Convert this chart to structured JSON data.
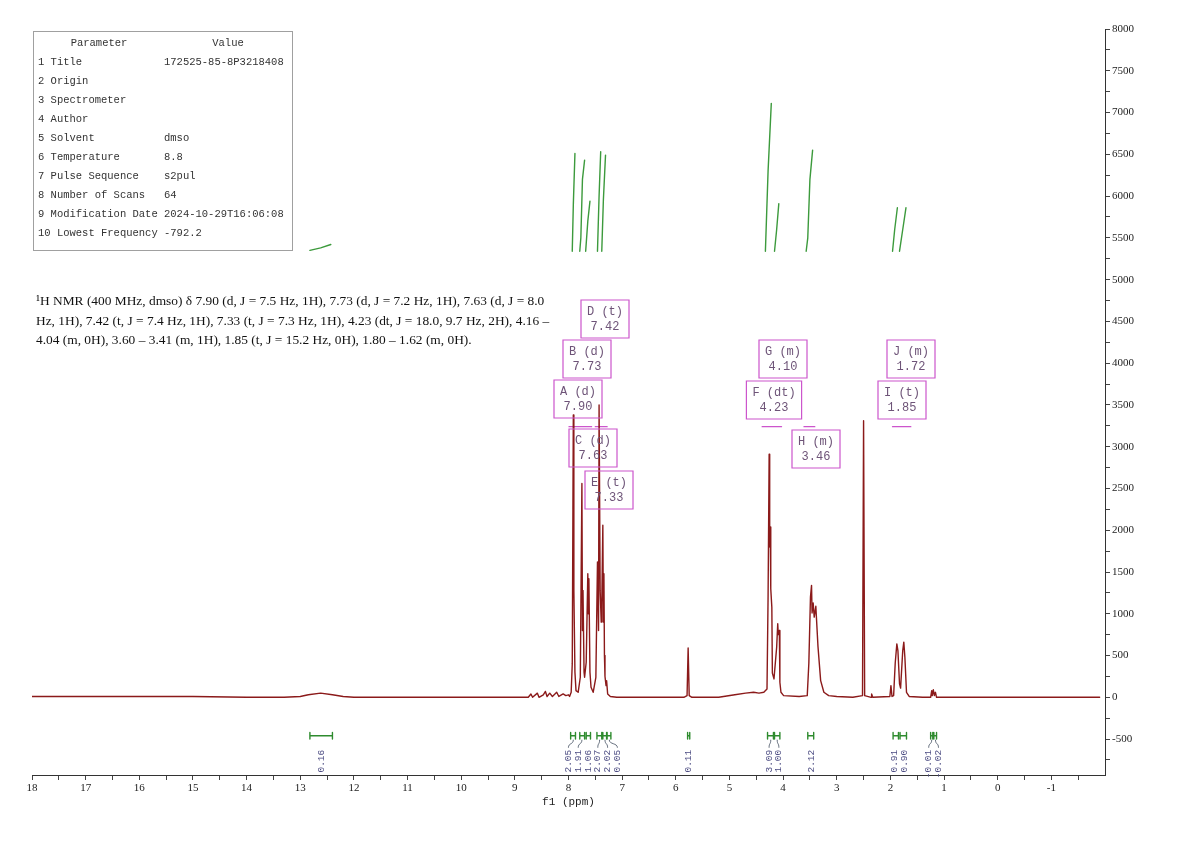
{
  "chart_data": [
    {
      "type": "line",
      "xlabel": "f1 (ppm)",
      "xlim": [
        18,
        -2
      ],
      "xticks": [
        18,
        {
          "value": 17.5,
          "label": null
        },
        17,
        {
          "value": 16.5,
          "label": null
        },
        16,
        {
          "value": 15.5,
          "label": null
        },
        15,
        {
          "value": 14.5,
          "label": null
        },
        14,
        {
          "value": 13.5,
          "label": null
        },
        13,
        {
          "value": 12.5,
          "label": null
        },
        12,
        {
          "value": 11.5,
          "label": null
        },
        11,
        {
          "value": 10.5,
          "label": null
        },
        10,
        {
          "value": 9.5,
          "label": null
        },
        9,
        {
          "value": 8.5,
          "label": null
        },
        8,
        {
          "value": 7.5,
          "label": null
        },
        7,
        {
          "value": 6.5,
          "label": null
        },
        6,
        {
          "value": 5.5,
          "label": null
        },
        5,
        {
          "value": 4.5,
          "label": null
        },
        4,
        {
          "value": 3.5,
          "label": null
        },
        3,
        {
          "value": 2.5,
          "label": null
        },
        2,
        {
          "value": 1.5,
          "label": null
        },
        1,
        {
          "value": 0.5,
          "label": null
        },
        0,
        {
          "value": -0.5,
          "label": null
        },
        -1,
        {
          "value": -1.5,
          "label": null
        }
      ],
      "ylim": [
        -930,
        8000
      ],
      "yticks": [
        {
          "value": -750,
          "label": null
        },
        -500,
        {
          "value": -250,
          "label": null
        },
        0,
        {
          "value": 250,
          "label": null
        },
        500,
        {
          "value": 750,
          "label": null
        },
        1000,
        {
          "value": 1250,
          "label": null
        },
        1500,
        {
          "value": 1750,
          "label": null
        },
        2000,
        {
          "value": 2250,
          "label": null
        },
        2500,
        {
          "value": 2750,
          "label": null
        },
        3000,
        {
          "value": 3250,
          "label": null
        },
        3500,
        {
          "value": 3750,
          "label": null
        },
        4000,
        {
          "value": 4250,
          "label": null
        },
        4500,
        {
          "value": 4750,
          "label": null
        },
        5000,
        {
          "value": 5250,
          "label": null
        },
        5500,
        {
          "value": 5750,
          "label": null
        },
        6000,
        {
          "value": 6250,
          "label": null
        },
        6500,
        {
          "value": 6750,
          "label": null
        },
        7000,
        {
          "value": 7250,
          "label": null
        },
        7500,
        {
          "value": 7750,
          "label": null
        },
        8000
      ],
      "series": [
        {
          "color": "#8b1a1a",
          "x": [
            18,
            17,
            16,
            15,
            14,
            13.3,
            13,
            12.85,
            12.62,
            12.4,
            12.2,
            12,
            11,
            10,
            9,
            8.75,
            8.7,
            8.67,
            8.58,
            8.55,
            8.47,
            8.43,
            8.4,
            8.35,
            8.3,
            8.22,
            8.18,
            8.1,
            8.05,
            8,
            7.98,
            7.95,
            7.93,
            7.91,
            7.9,
            7.88,
            7.86,
            7.82,
            7.78,
            7.75,
            7.74,
            7.73,
            7.71,
            7.7,
            7.67,
            7.64,
            7.63,
            7.62,
            7.6,
            7.58,
            7.54,
            7.49,
            7.46,
            7.44,
            7.43,
            7.41,
            7.39,
            7.38,
            7.36,
            7.35,
            7.34,
            7.33,
            7.32,
            7.3,
            7.29,
            7.27,
            7.22,
            7.1,
            6.5,
            6,
            5.85,
            5.79,
            5.77,
            5.75,
            5.7,
            5.2,
            4.9,
            4.7,
            4.55,
            4.45,
            4.36,
            4.3,
            4.28,
            4.26,
            4.25,
            4.24,
            4.23,
            4.21,
            4.2,
            4.17,
            4.12,
            4.1,
            4.09,
            4.07,
            4.06,
            4.04,
            3.99,
            3.7,
            3.55,
            3.52,
            3.49,
            3.47,
            3.46,
            3.44,
            3.42,
            3.39,
            3.35,
            3.3,
            3.24,
            3.15,
            3,
            2.7,
            2.52,
            2.5,
            2.48,
            2.36,
            2.35,
            2.33,
            2.01,
            1.99,
            1.97,
            1.94,
            1.91,
            1.88,
            1.86,
            1.83,
            1.81,
            1.77,
            1.75,
            1.73,
            1.7,
            1.65,
            1.4,
            1.25,
            1.23,
            1.22,
            1.2,
            1.18,
            1.16,
            1.14,
            1,
            0,
            -1,
            -1.9
          ],
          "values": [
            10,
            10,
            10,
            10,
            0,
            0,
            10,
            30,
            50,
            30,
            10,
            0,
            0,
            0,
            0,
            0,
            40,
            0,
            50,
            0,
            30,
            70,
            10,
            50,
            10,
            60,
            10,
            40,
            20,
            30,
            10,
            60,
            400,
            3380,
            1280,
            300,
            80,
            60,
            240,
            2560,
            800,
            1280,
            300,
            240,
            420,
            1480,
            1000,
            1420,
            300,
            120,
            60,
            240,
            1620,
            800,
            3500,
            1280,
            900,
            1100,
            2060,
            900,
            1480,
            500,
            250,
            140,
            200,
            40,
            10,
            0,
            0,
            0,
            0,
            20,
            590,
            20,
            0,
            0,
            30,
            50,
            60,
            50,
            60,
            100,
            1200,
            2910,
            1800,
            2040,
            1300,
            1080,
            290,
            220,
            600,
            880,
            750,
            800,
            180,
            60,
            20,
            10,
            20,
            410,
            1200,
            1340,
            1010,
            1130,
            960,
            1090,
            610,
            200,
            60,
            20,
            10,
            0,
            20,
            3310,
            20,
            0,
            40,
            0,
            10,
            140,
            10,
            20,
            410,
            640,
            560,
            160,
            110,
            560,
            660,
            480,
            60,
            10,
            0,
            0,
            80,
            20,
            90,
            20,
            60,
            0,
            0,
            0,
            0,
            0
          ]
        },
        {
          "color": "#3c9a3c",
          "x": [
            12.82,
            12.62,
            12.43,
            null,
            7.93,
            7.91,
            7.88,
            null,
            7.79,
            7.77,
            7.74,
            7.7,
            null,
            7.68,
            7.64,
            7.6,
            null,
            7.46,
            7.43,
            7.4,
            null,
            7.38,
            7.35,
            7.31,
            null,
            4.33,
            4.28,
            4.22,
            null,
            4.16,
            4.12,
            4.08,
            null,
            3.57,
            3.54,
            3.5,
            3.45,
            null,
            1.96,
            1.92,
            1.87,
            null,
            1.83,
            1.77,
            1.71
          ],
          "values": [
            5350,
            5380,
            5420,
            null,
            5340,
            5900,
            6510,
            null,
            5340,
            5500,
            6200,
            6430,
            null,
            5340,
            5700,
            5940,
            null,
            5340,
            6000,
            6530,
            null,
            5340,
            5950,
            6490,
            null,
            5340,
            6300,
            7110,
            null,
            5340,
            5600,
            5910,
            null,
            5340,
            5500,
            6200,
            6550,
            null,
            5340,
            5600,
            5860,
            null,
            5340,
            5600,
            5860
          ]
        },
        {
          "color": "#2e8b2e",
          "x": [
            12.82,
            12.82,
            12.82,
            12.4,
            12.4,
            12.4,
            null,
            7.96,
            7.96,
            7.96,
            7.87,
            7.87,
            7.87,
            null,
            7.79,
            7.79,
            7.79,
            7.7,
            7.7,
            7.7,
            null,
            7.67,
            7.67,
            7.67,
            7.59,
            7.59,
            7.59,
            null,
            7.47,
            7.47,
            7.47,
            7.38,
            7.38,
            7.38,
            null,
            7.36,
            7.36,
            7.36,
            7.29,
            7.29,
            7.29,
            null,
            7.28,
            7.28,
            7.28,
            7.21,
            7.21,
            7.21,
            null,
            5.78,
            5.78,
            5.78,
            5.74,
            5.74,
            5.74,
            null,
            4.29,
            4.29,
            4.29,
            4.18,
            4.18,
            4.18,
            null,
            4.16,
            4.16,
            4.16,
            4.06,
            4.06,
            4.06,
            null,
            3.54,
            3.54,
            3.54,
            3.43,
            3.43,
            3.43,
            null,
            1.95,
            1.95,
            1.95,
            1.85,
            1.85,
            1.85,
            null,
            1.82,
            1.82,
            1.82,
            1.7,
            1.7,
            1.7,
            null,
            1.25,
            1.25,
            1.25,
            1.21,
            1.21,
            1.21,
            null,
            1.19,
            1.19,
            1.19,
            1.14,
            1.14,
            1.14
          ],
          "values": [
            -420,
            -500,
            -460,
            -460,
            -420,
            -500,
            null,
            -420,
            -500,
            -460,
            -460,
            -420,
            -500,
            null,
            -420,
            -500,
            -460,
            -460,
            -420,
            -500,
            null,
            -420,
            -500,
            -460,
            -460,
            -420,
            -500,
            null,
            -420,
            -500,
            -460,
            -460,
            -420,
            -500,
            null,
            -420,
            -500,
            -460,
            -460,
            -420,
            -500,
            null,
            -420,
            -500,
            -460,
            -460,
            -420,
            -500,
            null,
            -420,
            -500,
            -460,
            -460,
            -420,
            -500,
            null,
            -420,
            -500,
            -460,
            -460,
            -420,
            -500,
            null,
            -420,
            -500,
            -460,
            -460,
            -420,
            -500,
            null,
            -420,
            -500,
            -460,
            -460,
            -420,
            -500,
            null,
            -420,
            -500,
            -460,
            -460,
            -420,
            -500,
            null,
            -420,
            -500,
            -460,
            -460,
            -420,
            -500,
            null,
            -420,
            -500,
            -460,
            -460,
            -420,
            -500,
            null,
            -420,
            -500,
            -460,
            -460,
            -420,
            -500
          ]
        },
        {
          "color": "#cc55cc",
          "x": [
            7.99,
            7.57,
            null,
            7.5,
            7.28,
            null,
            4.39,
            4.03,
            null,
            3.61,
            3.41,
            null,
            1.96,
            1.62
          ],
          "values": [
            3240,
            3240,
            null,
            3240,
            3240,
            null,
            3240,
            3240,
            null,
            3240,
            3240,
            null,
            3240,
            3240
          ]
        }
      ],
      "annotations": [
        "¹H NMR (400 MHz, dmso) δ 7.90 (d, J = 7.5 Hz, 1H), 7.73 (d, J = 7.2 Hz, 1H), 7.63 (d, J = 8.0 Hz, 1H), 7.42 (t, J = 7.4 Hz, 1H), 7.33 (t, J = 7.3 Hz, 1H), 4.23 (dt, J = 18.0, 9.7 Hz, 2H), 4.16 – 4.04 (m, 0H), 3.60 – 3.41 (m, 1H), 1.85 (t, J = 15.2 Hz, 0H), 1.80 – 1.62 (m, 0H).",
        "A (d)\n7.90",
        "B (d)\n7.73",
        "C (d)\n7.63",
        "D (t)\n7.42",
        "E (t)\n7.33",
        "F (dt)\n4.23",
        "G (m)\n4.10",
        "H (m)\n3.46",
        "I (t)\n1.85",
        "J (m)\n1.72",
        {
          "text": "0.16",
          "x": 12.61,
          "y": -460
        },
        {
          "text": "2.05",
          "x": 7.91,
          "y": -460
        },
        {
          "text": "1.91",
          "x": 7.75,
          "y": -460
        },
        {
          "text": "1.06",
          "x": 7.63,
          "y": -460
        },
        {
          "text": "2.07",
          "x": 7.42,
          "y": -460
        },
        {
          "text": "2.02",
          "x": 7.32,
          "y": -460
        },
        {
          "text": "0.05",
          "x": 7.24,
          "y": -460
        },
        {
          "text": "0.11",
          "x": 5.76,
          "y": -460
        },
        {
          "text": "3.09",
          "x": 4.23,
          "y": -460
        },
        {
          "text": "1.00",
          "x": 4.11,
          "y": -460
        },
        {
          "text": "2.12",
          "x": 3.48,
          "y": -460
        },
        {
          "text": "0.91",
          "x": 1.9,
          "y": -460
        },
        {
          "text": "0.90",
          "x": 1.76,
          "y": -460
        },
        {
          "text": "-0.01",
          "x": 1.23,
          "y": -460
        },
        {
          "text": "-0.02",
          "x": 1.16,
          "y": -460
        }
      ]
    },
    {
      "type": "other",
      "annotations": [
        "Parameter",
        "Value"
      ],
      "categories": [
        "1 Title",
        "2 Origin",
        "3 Spectrometer",
        "4 Author",
        "5 Solvent",
        "6 Temperature",
        "7 Pulse Sequence",
        "8 Number of Scans",
        "9 Modification Date",
        "10 Lowest Frequency"
      ],
      "value_labels": [
        "172525-85-8P3218408",
        null,
        null,
        null,
        "dmso",
        "8.8",
        "s2pul",
        "64",
        "2024-10-29T16:06:08",
        "-792.2"
      ]
    }
  ]
}
